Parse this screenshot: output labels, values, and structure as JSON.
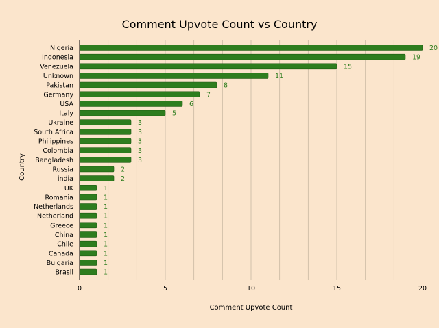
{
  "chart_data": {
    "type": "bar",
    "orientation": "horizontal",
    "title": "Comment Upvote Count vs Country",
    "xlabel": "Comment Upvote Count",
    "ylabel": "Country",
    "categories": [
      "Nigeria",
      "Indonesia",
      "Venezuela",
      "Unknown",
      "Pakistan",
      "Germany",
      "USA",
      "Italy",
      "Ukraine",
      "South Africa",
      "Philippines",
      "Colombia",
      "Bangladesh",
      "Russia",
      "india",
      "UK",
      "Romania",
      "Netherlands",
      "Netherland",
      "Greece",
      "China",
      "Chile",
      "Canada",
      "Bulgaria",
      "Brasil"
    ],
    "values": [
      20,
      19,
      15,
      11,
      8,
      7,
      6,
      5,
      3,
      3,
      3,
      3,
      3,
      2,
      2,
      1,
      1,
      1,
      1,
      1,
      1,
      1,
      1,
      1,
      1
    ],
    "xlim": [
      0,
      20
    ],
    "xticks": [
      0,
      5,
      10,
      15,
      20
    ],
    "grid": "vertical",
    "legend": "none",
    "colors": {
      "background": "#fbe5cc",
      "bar": "#2e7d1e",
      "bar_edge": "#1f5a12",
      "data_label": "#2e7d1e",
      "grid": "#c8b8a2"
    }
  }
}
